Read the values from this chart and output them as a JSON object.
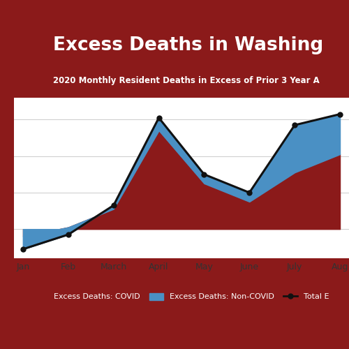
{
  "title": "Excess Deaths in Washing",
  "subtitle": "2020 Monthly Resident Deaths in Excess of Prior 3 Year A",
  "months": [
    "Jan",
    "Feb",
    "March",
    "April",
    "May",
    "June",
    "July",
    "Aug"
  ],
  "covid_deaths": [
    -20,
    5,
    55,
    270,
    125,
    75,
    155,
    205
  ],
  "total_excess": [
    -55,
    -15,
    65,
    305,
    150,
    100,
    285,
    315
  ],
  "covid_color": "#8B1A1A",
  "non_covid_color": "#4A90C4",
  "total_line_color": "#111111",
  "background_color": "#8B1A1A",
  "chart_bg": "#FFFFFF",
  "title_bg": "#3B82C4",
  "title_color": "#FFFFFF",
  "legend_covid": "Excess Deaths: COVID",
  "legend_noncovid": "Excess Deaths: Non-COVID",
  "legend_total": "Total E",
  "ylim_min": -80,
  "ylim_max": 360,
  "figsize": [
    5.0,
    5.0
  ],
  "dpi": 100
}
